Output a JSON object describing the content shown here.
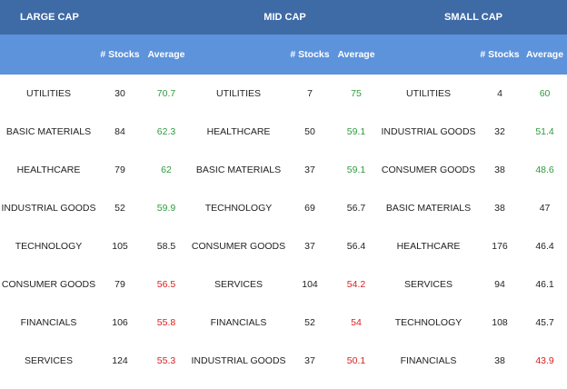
{
  "header": {
    "large_cap": "LARGE CAP",
    "mid_cap": "MID CAP",
    "small_cap": "SMALL CAP",
    "col_stocks": "# Stocks",
    "col_average": "Average"
  },
  "colors": {
    "header_dark": "#3e6aa6",
    "header_light": "#5d93db",
    "positive": "#2e9a3f",
    "negative": "#d9201d"
  },
  "rows": [
    {
      "large": {
        "sector": "UTILITIES",
        "stocks": "30",
        "average": "70.7",
        "tone": "pos"
      },
      "mid": {
        "sector": "UTILITIES",
        "stocks": "7",
        "average": "75",
        "tone": "pos"
      },
      "small": {
        "sector": "UTILITIES",
        "stocks": "4",
        "average": "60",
        "tone": "pos"
      }
    },
    {
      "large": {
        "sector": "BASIC MATERIALS",
        "stocks": "84",
        "average": "62.3",
        "tone": "pos"
      },
      "mid": {
        "sector": "HEALTHCARE",
        "stocks": "50",
        "average": "59.1",
        "tone": "pos"
      },
      "small": {
        "sector": "INDUSTRIAL GOODS",
        "stocks": "32",
        "average": "51.4",
        "tone": "pos"
      }
    },
    {
      "large": {
        "sector": "HEALTHCARE",
        "stocks": "79",
        "average": "62",
        "tone": "pos"
      },
      "mid": {
        "sector": "BASIC MATERIALS",
        "stocks": "37",
        "average": "59.1",
        "tone": "pos"
      },
      "small": {
        "sector": "CONSUMER GOODS",
        "stocks": "38",
        "average": "48.6",
        "tone": "pos"
      }
    },
    {
      "large": {
        "sector": "INDUSTRIAL GOODS",
        "stocks": "52",
        "average": "59.9",
        "tone": "pos"
      },
      "mid": {
        "sector": "TECHNOLOGY",
        "stocks": "69",
        "average": "56.7",
        "tone": "neu"
      },
      "small": {
        "sector": "BASIC MATERIALS",
        "stocks": "38",
        "average": "47",
        "tone": "neu"
      }
    },
    {
      "large": {
        "sector": "TECHNOLOGY",
        "stocks": "105",
        "average": "58.5",
        "tone": "neu"
      },
      "mid": {
        "sector": "CONSUMER GOODS",
        "stocks": "37",
        "average": "56.4",
        "tone": "neu"
      },
      "small": {
        "sector": "HEALTHCARE",
        "stocks": "176",
        "average": "46.4",
        "tone": "neu"
      }
    },
    {
      "large": {
        "sector": "CONSUMER GOODS",
        "stocks": "79",
        "average": "56.5",
        "tone": "neg"
      },
      "mid": {
        "sector": "SERVICES",
        "stocks": "104",
        "average": "54.2",
        "tone": "neg"
      },
      "small": {
        "sector": "SERVICES",
        "stocks": "94",
        "average": "46.1",
        "tone": "neu"
      }
    },
    {
      "large": {
        "sector": "FINANCIALS",
        "stocks": "106",
        "average": "55.8",
        "tone": "neg"
      },
      "mid": {
        "sector": "FINANCIALS",
        "stocks": "52",
        "average": "54",
        "tone": "neg"
      },
      "small": {
        "sector": "TECHNOLOGY",
        "stocks": "108",
        "average": "45.7",
        "tone": "neu"
      }
    },
    {
      "large": {
        "sector": "SERVICES",
        "stocks": "124",
        "average": "55.3",
        "tone": "neg"
      },
      "mid": {
        "sector": "INDUSTRIAL GOODS",
        "stocks": "37",
        "average": "50.1",
        "tone": "neg"
      },
      "small": {
        "sector": "FINANCIALS",
        "stocks": "38",
        "average": "43.9",
        "tone": "neg"
      }
    }
  ]
}
